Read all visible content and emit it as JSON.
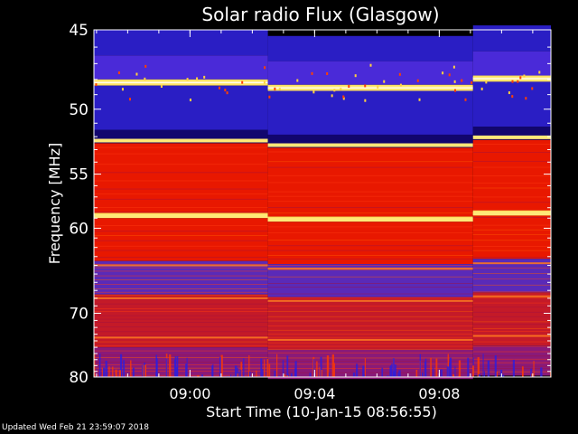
{
  "chart_data": {
    "type": "heatmap",
    "title": "Solar radio Flux (Glasgow)",
    "xlabel": "Start Time (10-Jan-15 08:56:55)",
    "ylabel": "Frequency [MHz]",
    "xlim": [
      "08:56:55",
      "09:11:35"
    ],
    "ylim": [
      45,
      80
    ],
    "x_scale": "linear",
    "y_scale": "reciprocal",
    "x_ticks": [
      "09:00",
      "09:04",
      "09:08"
    ],
    "y_ticks": [
      45,
      50,
      55,
      60,
      70,
      80
    ],
    "segment_starts": [
      "08:56:55",
      "09:02:30",
      "09:09:05"
    ],
    "bands": [
      {
        "from": 45.0,
        "to": 46.5,
        "intensity": "low"
      },
      {
        "from": 46.5,
        "to": 48.0,
        "intensity": "low-medium"
      },
      {
        "from": 48.0,
        "to": 48.4,
        "intensity": "very high"
      },
      {
        "from": 48.4,
        "to": 51.5,
        "intensity": "low"
      },
      {
        "from": 51.5,
        "to": 52.5,
        "intensity": "very low"
      },
      {
        "from": 52.5,
        "to": 58.5,
        "intensity": "high"
      },
      {
        "from": 58.5,
        "to": 59.0,
        "intensity": "very high"
      },
      {
        "from": 59.0,
        "to": 63.5,
        "intensity": "high"
      },
      {
        "from": 63.5,
        "to": 67.5,
        "intensity": "medium-low"
      },
      {
        "from": 67.5,
        "to": 75.0,
        "intensity": "medium-high"
      },
      {
        "from": 75.0,
        "to": 80.0,
        "intensity": "medium"
      }
    ],
    "bright_lines_mhz": [
      48.2,
      52.3,
      58.8,
      64.0,
      68.0,
      73.5
    ],
    "colormap": [
      "#000000",
      "#1a0a8c",
      "#3b2ce0",
      "#8a1c9a",
      "#c4102a",
      "#ff2400",
      "#ff6a00",
      "#ffd040",
      "#ffffe0"
    ]
  },
  "footer": "Updated Wed Feb 21 23:59:07 2018"
}
